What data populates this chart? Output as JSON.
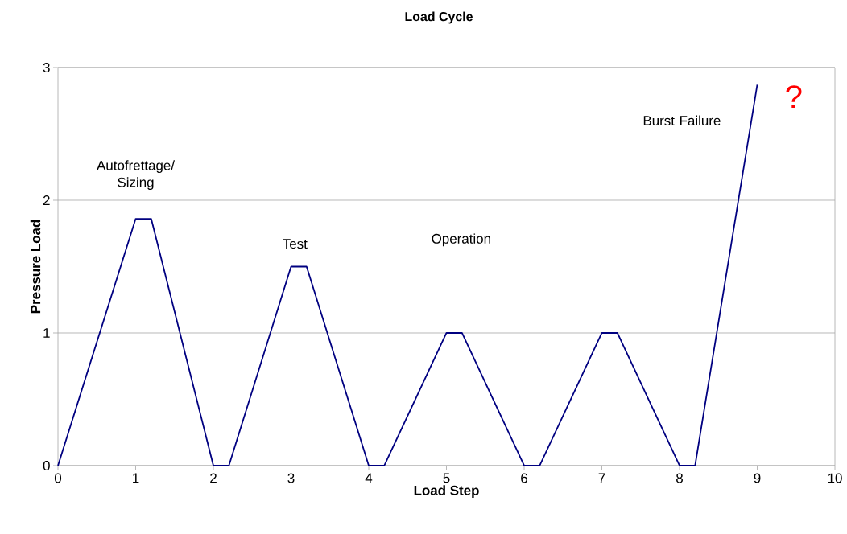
{
  "chart_data": {
    "type": "line",
    "title": "Load Cycle",
    "xlabel": "Load Step",
    "ylabel": "Pressure Load",
    "x": [
      0,
      1,
      1.2,
      2,
      2.2,
      3,
      3.2,
      4,
      4.2,
      5,
      5.2,
      6,
      6.2,
      7,
      7.2,
      8,
      8.2,
      9
    ],
    "values": [
      0,
      1.86,
      1.86,
      0,
      0,
      1.5,
      1.5,
      0,
      0,
      1,
      1,
      0,
      0,
      1,
      1,
      0,
      0,
      2.87
    ],
    "color": "#000080",
    "xlim": [
      0,
      10
    ],
    "ylim": [
      0,
      3
    ],
    "xticks": [
      0,
      1,
      2,
      3,
      4,
      5,
      6,
      7,
      8,
      9,
      10
    ],
    "yticks": [
      0,
      1,
      2,
      3
    ],
    "grid": "y",
    "marker": "none",
    "line_style": "solid",
    "annotations": [
      "Autofrettage/ Sizing",
      "Test",
      "Operation",
      "Burst Failure",
      "?"
    ]
  }
}
